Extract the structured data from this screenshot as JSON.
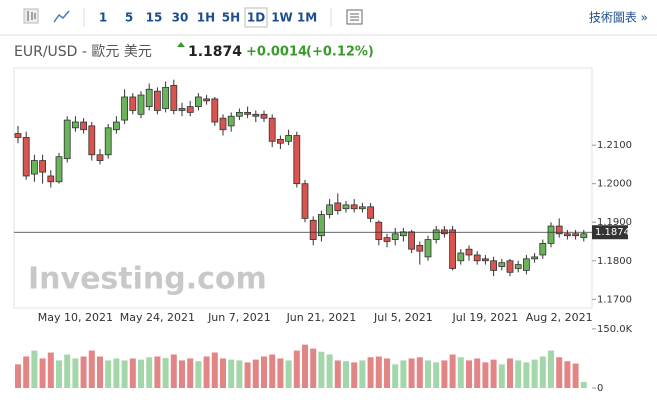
{
  "toolbar": {
    "intervals": [
      "1",
      "5",
      "15",
      "30",
      "1H",
      "5H",
      "1D",
      "1W",
      "1M"
    ],
    "selected": "1D",
    "link": "技術圖表 »"
  },
  "header": {
    "symbol": "EUR/USD - 歐元 美元",
    "change": "+0.0014",
    "change_pct": "(+0.12%)"
  },
  "watermark": "Investing.com",
  "chart_data": {
    "type": "candlestick",
    "last_price": 1.1874,
    "up_color": "#69b35a",
    "down_color": "#d9534f",
    "volume_up_color": "#a3d6a9",
    "volume_down_color": "#e38585",
    "categories": [
      null,
      null,
      null,
      null,
      null,
      null,
      null,
      "May 10, 2021",
      null,
      null,
      null,
      null,
      null,
      null,
      null,
      null,
      null,
      "May 24, 2021",
      null,
      null,
      null,
      null,
      null,
      null,
      null,
      null,
      null,
      "Jun 7, 2021",
      null,
      null,
      null,
      null,
      null,
      null,
      null,
      null,
      null,
      "Jun 21, 2021",
      null,
      null,
      null,
      null,
      null,
      null,
      null,
      null,
      null,
      "Jul 5, 2021",
      null,
      null,
      null,
      null,
      null,
      null,
      null,
      null,
      null,
      "Jul 19, 2021",
      null,
      null,
      null,
      null,
      null,
      null,
      null,
      null,
      "Aug 2, 2021",
      null,
      null,
      null
    ],
    "open": [
      1.213,
      1.212,
      1.2025,
      1.206,
      1.202,
      1.2005,
      1.2065,
      1.2145,
      1.216,
      1.215,
      1.2075,
      1.2075,
      1.214,
      1.2165,
      1.2225,
      1.218,
      1.22,
      1.224,
      1.2195,
      1.2255,
      1.2195,
      1.22,
      1.22,
      1.222,
      1.222,
      1.217,
      1.215,
      1.2175,
      1.2185,
      1.218,
      1.218,
      1.217,
      1.2115,
      1.211,
      1.2125,
      1.2,
      1.1905,
      1.1865,
      1.192,
      1.195,
      1.1935,
      1.1945,
      1.1935,
      1.194,
      1.19,
      1.186,
      1.1855,
      1.1865,
      1.1875,
      1.184,
      1.181,
      1.1855,
      1.188,
      1.188,
      1.18,
      1.183,
      1.1815,
      1.1805,
      1.18,
      1.1785,
      1.18,
      1.178,
      1.1775,
      1.1805,
      1.1815,
      1.1845,
      1.189,
      1.187,
      1.187,
      1.186
    ],
    "high": [
      1.215,
      1.2135,
      1.2075,
      1.2075,
      1.2035,
      1.208,
      1.2175,
      1.2175,
      1.217,
      1.216,
      1.209,
      1.2155,
      1.2175,
      1.2245,
      1.2235,
      1.224,
      1.226,
      1.225,
      1.2265,
      1.227,
      1.221,
      1.2215,
      1.2235,
      1.223,
      1.2225,
      1.218,
      1.2185,
      1.2195,
      1.22,
      1.219,
      1.219,
      1.218,
      1.2125,
      1.214,
      1.2135,
      1.201,
      1.1915,
      1.193,
      1.196,
      1.1975,
      1.1955,
      1.196,
      1.195,
      1.195,
      1.1905,
      1.187,
      1.1885,
      1.1885,
      1.188,
      1.185,
      1.1865,
      1.189,
      1.189,
      1.189,
      1.183,
      1.184,
      1.1825,
      1.1815,
      1.181,
      1.1805,
      1.1805,
      1.18,
      1.1815,
      1.182,
      1.1855,
      1.19,
      1.191,
      1.188,
      1.188,
      1.188
    ],
    "low": [
      1.2105,
      1.201,
      1.2005,
      1.2,
      1.199,
      1.2,
      1.2055,
      1.2135,
      1.213,
      1.206,
      1.205,
      1.2065,
      1.213,
      1.2155,
      1.218,
      1.217,
      1.219,
      1.218,
      1.2185,
      1.218,
      1.2175,
      1.2175,
      1.219,
      1.2205,
      1.215,
      1.2125,
      1.2135,
      1.2165,
      1.217,
      1.216,
      1.216,
      1.2095,
      1.209,
      1.21,
      1.199,
      1.19,
      1.184,
      1.185,
      1.191,
      1.192,
      1.1925,
      1.1925,
      1.1925,
      1.19,
      1.184,
      1.1835,
      1.184,
      1.185,
      1.182,
      1.179,
      1.18,
      1.1845,
      1.186,
      1.1775,
      1.179,
      1.18,
      1.179,
      1.179,
      1.176,
      1.1775,
      1.176,
      1.177,
      1.1765,
      1.1795,
      1.1805,
      1.1835,
      1.186,
      1.1855,
      1.1855,
      1.185
    ],
    "close": [
      1.212,
      1.202,
      1.206,
      1.203,
      1.2005,
      1.207,
      1.2165,
      1.216,
      1.214,
      1.2075,
      1.206,
      1.2145,
      1.216,
      1.2225,
      1.219,
      1.223,
      1.2245,
      1.219,
      1.225,
      1.219,
      1.219,
      1.2185,
      1.2225,
      1.2215,
      1.216,
      1.214,
      1.2175,
      1.2185,
      1.218,
      1.2175,
      1.217,
      1.211,
      1.2105,
      1.2125,
      1.2,
      1.191,
      1.1855,
      1.192,
      1.1945,
      1.193,
      1.1945,
      1.1935,
      1.194,
      1.191,
      1.1855,
      1.185,
      1.187,
      1.1875,
      1.183,
      1.1825,
      1.1855,
      1.188,
      1.187,
      1.178,
      1.182,
      1.1815,
      1.18,
      1.18,
      1.1775,
      1.1795,
      1.177,
      1.179,
      1.1805,
      1.181,
      1.1845,
      1.189,
      1.187,
      1.1865,
      1.1865,
      1.187
    ],
    "volume": [
      60000,
      80000,
      95000,
      75000,
      90000,
      70000,
      85000,
      75000,
      80000,
      95000,
      80000,
      70000,
      75000,
      70000,
      75000,
      72000,
      78000,
      80000,
      76000,
      85000,
      70000,
      75000,
      68000,
      80000,
      90000,
      75000,
      72000,
      70000,
      65000,
      72000,
      80000,
      85000,
      75000,
      70000,
      95000,
      110000,
      100000,
      92000,
      85000,
      70000,
      68000,
      65000,
      70000,
      78000,
      80000,
      75000,
      60000,
      70000,
      75000,
      78000,
      70000,
      65000,
      70000,
      85000,
      78000,
      70000,
      75000,
      65000,
      72000,
      60000,
      75000,
      70000,
      65000,
      72000,
      80000,
      95000,
      78000,
      68000,
      62000,
      15000
    ],
    "ylim": [
      1.168,
      1.2295
    ],
    "yticks": [
      {
        "value": 1.21,
        "label": "1.2100"
      },
      {
        "value": 1.2,
        "label": "1.2000"
      },
      {
        "value": 1.19,
        "label": "1.1900"
      },
      {
        "value": 1.18,
        "label": "1.1800"
      },
      {
        "value": 1.17,
        "label": "1.1700"
      }
    ],
    "y2lim": [
      0,
      170000
    ],
    "y2ticks": [
      {
        "value": 150000,
        "label": "150.0K"
      },
      0
    ]
  }
}
